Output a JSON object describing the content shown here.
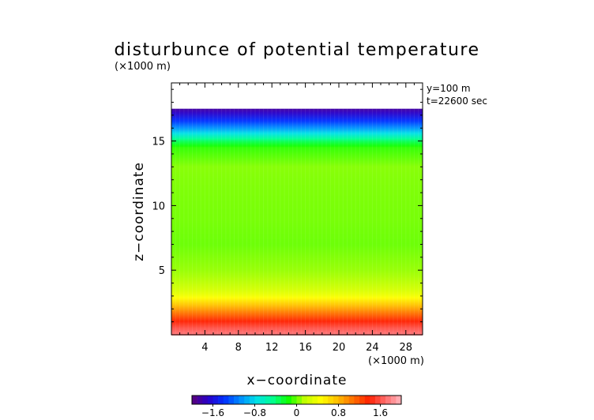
{
  "chart_data": {
    "type": "heatmap",
    "title": "disturbunce of potential temperature",
    "y_unit": "(×1000 m)",
    "x_unit": "(×1000 m)",
    "xlabel": "x−coordinate",
    "ylabel": "z−coordinate",
    "annotations": [
      "y=100 m",
      "t=22600 sec"
    ],
    "xlim": [
      0,
      30
    ],
    "ylim": [
      0,
      19.5
    ],
    "x_ticks": [
      4,
      8,
      12,
      16,
      20,
      24,
      28
    ],
    "x_tick_labels": [
      "4",
      "8",
      "12",
      "16",
      "20",
      "24",
      "28"
    ],
    "y_ticks": [
      5,
      10,
      15
    ],
    "y_tick_labels": [
      "5",
      "10",
      "15"
    ],
    "data_top": 17.5,
    "profile": {
      "z": [
        0,
        0.5,
        1.0,
        1.5,
        2.0,
        2.5,
        3.0,
        3.5,
        4.0,
        5.0,
        7.0,
        9.0,
        11.0,
        13.0,
        14.5,
        15.0,
        15.5,
        16.0,
        16.5,
        17.0,
        17.5
      ],
      "value": [
        1.75,
        1.6,
        1.4,
        1.15,
        0.9,
        0.65,
        0.4,
        0.25,
        0.15,
        0.08,
        0.0,
        0.02,
        0.03,
        0.05,
        -0.1,
        -0.35,
        -0.7,
        -1.05,
        -1.35,
        -1.6,
        -1.85
      ]
    },
    "colorbar": {
      "range": [
        -2.0,
        2.0
      ],
      "ticks": [
        -1.6,
        -0.8,
        0,
        0.8,
        1.6
      ],
      "tick_labels": [
        "−1.6",
        "−0.8",
        "0",
        "0.8",
        "1.6"
      ],
      "colors": [
        "#5a007a",
        "#2a00c8",
        "#0030ff",
        "#008cff",
        "#00e0e8",
        "#00ff90",
        "#10ff00",
        "#c0ff00",
        "#ffff00",
        "#ffc000",
        "#ff7000",
        "#ff2000",
        "#ff6a6a",
        "#ffb8c0"
      ]
    }
  }
}
